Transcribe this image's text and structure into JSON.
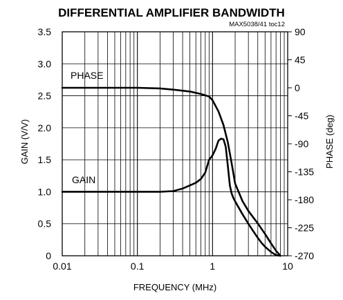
{
  "chart_data": {
    "type": "line",
    "title": "DIFFERENTIAL AMPLIFIER BANDWIDTH",
    "annotation": "MAX5038/41 toc12",
    "xlabel": "FREQUENCY (MHz)",
    "ylabel": "GAIN (V/V)",
    "y2label": "PHASE (deg)",
    "xscale": "log",
    "xlim": [
      0.01,
      10
    ],
    "ylim": [
      0,
      3.5
    ],
    "y2lim": [
      -270,
      90
    ],
    "grid": true,
    "x_ticks": [
      0.01,
      0.1,
      1,
      10
    ],
    "x_tick_labels": [
      "0.01",
      "0.1",
      "1",
      "10"
    ],
    "y_ticks": [
      0,
      0.5,
      1.0,
      1.5,
      2.0,
      2.5,
      3.0,
      3.5
    ],
    "y_tick_labels": [
      "0",
      "0.5",
      "1.0",
      "1.5",
      "2.0",
      "2.5",
      "3.0",
      "3.5"
    ],
    "y2_ticks": [
      90,
      45,
      0,
      -45,
      -90,
      -135,
      -180,
      -225,
      -270
    ],
    "y2_tick_labels": [
      "90",
      "45",
      "0",
      "-45",
      "-90",
      "-135",
      "-180",
      "-225",
      "-270"
    ],
    "series": [
      {
        "name": "GAIN",
        "axis": "left",
        "x": [
          0.01,
          0.05,
          0.1,
          0.2,
          0.3,
          0.4,
          0.5,
          0.6,
          0.7,
          0.8,
          0.9,
          1.0,
          1.1,
          1.2,
          1.3,
          1.4,
          1.5,
          1.6,
          1.7,
          1.8,
          1.9,
          2.0,
          2.5,
          3.0,
          3.5,
          4.0,
          4.5,
          5.0,
          6.0,
          7.0,
          8.0
        ],
        "y": [
          1.0,
          1.0,
          1.0,
          1.0,
          1.01,
          1.05,
          1.1,
          1.14,
          1.2,
          1.3,
          1.5,
          1.57,
          1.67,
          1.8,
          1.83,
          1.82,
          1.7,
          1.4,
          1.1,
          0.97,
          0.9,
          0.85,
          0.65,
          0.5,
          0.38,
          0.28,
          0.2,
          0.14,
          0.06,
          0.01,
          0.0
        ]
      },
      {
        "name": "PHASE",
        "axis": "right",
        "x": [
          0.01,
          0.05,
          0.1,
          0.2,
          0.3,
          0.5,
          0.7,
          0.9,
          1.0,
          1.2,
          1.4,
          1.6,
          1.8,
          2.0,
          2.5,
          3.0,
          4.0,
          5.0,
          6.0,
          7.0,
          8.0
        ],
        "y": [
          0,
          0,
          0,
          -1,
          -3,
          -6,
          -10,
          -14,
          -20,
          -38,
          -60,
          -88,
          -122,
          -154,
          -182,
          -198,
          -218,
          -235,
          -250,
          -262,
          -270
        ]
      }
    ]
  }
}
